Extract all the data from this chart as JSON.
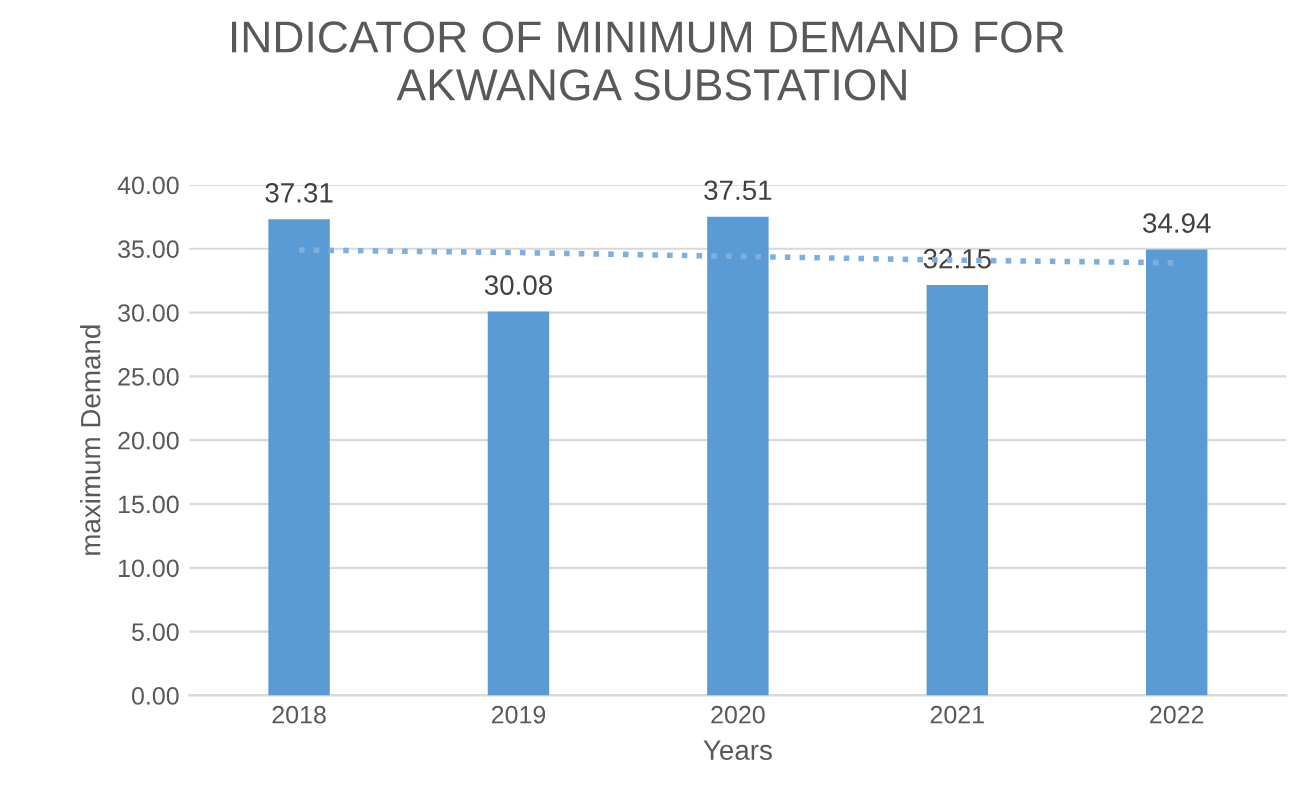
{
  "chart_data": {
    "type": "bar",
    "title": "INDICATOR OF MINIMUM DEMAND FOR  AKWANGA SUBSTATION",
    "xlabel": "Years",
    "ylabel": "maximum Demand",
    "categories": [
      "2018",
      "2019",
      "2020",
      "2021",
      "2022"
    ],
    "series": [
      {
        "color": "#5b9bd5",
        "values": [
          37.31,
          30.08,
          37.51,
          32.15,
          34.94
        ],
        "value_labels": [
          "37.31",
          "30.08",
          "37.51",
          "32.15",
          "34.94"
        ]
      },
      {
        "type": "line",
        "color": "#7fb0dd",
        "line_style": "dotted",
        "marker": "none",
        "values": [
          34.9,
          34.7,
          34.4,
          34.1,
          33.9
        ]
      }
    ],
    "ylim": [
      0,
      40
    ],
    "yticks": [
      {
        "value": 0,
        "label": "0.00"
      },
      {
        "value": 5,
        "label": "5.00"
      },
      {
        "value": 10,
        "label": "10.00"
      },
      {
        "value": 15,
        "label": "15.00"
      },
      {
        "value": 20,
        "label": "20.00"
      },
      {
        "value": 25,
        "label": "25.00"
      },
      {
        "value": 30,
        "label": "30.00"
      },
      {
        "value": 35,
        "label": "35.00"
      },
      {
        "value": 40,
        "label": "40.00"
      }
    ],
    "grid": "y"
  }
}
